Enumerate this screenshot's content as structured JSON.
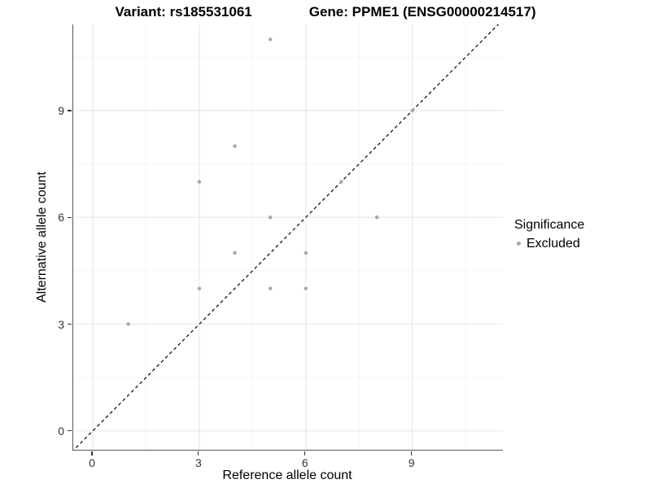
{
  "header": {
    "variant_title": "Variant: rs185531061",
    "gene_title": "Gene: PPME1 (ENSG00000214517)"
  },
  "chart_data": {
    "type": "scatter",
    "title": "Variant: rs185531061    Gene: PPME1 (ENSG00000214517)",
    "title_parts": {
      "left": "Variant: rs185531061",
      "right": "Gene: PPME1 (ENSG00000214517)"
    },
    "xlabel": "Reference allele count",
    "ylabel": "Alternative allele count",
    "xlim": [
      -0.55,
      11.55
    ],
    "ylim": [
      -0.53,
      11.42
    ],
    "x_ticks": [
      0,
      3,
      6,
      9
    ],
    "y_ticks": [
      0,
      3,
      6,
      9
    ],
    "x_minor_ticks": [
      1.5,
      4.5,
      7.5,
      10.5
    ],
    "y_minor_ticks": [
      1.5,
      4.5,
      7.5,
      10.5
    ],
    "grid": true,
    "legend_position": "right",
    "series": [
      {
        "name": "Excluded",
        "color": "#aaaaaa",
        "points": [
          [
            1,
            3
          ],
          [
            3,
            4
          ],
          [
            3,
            7
          ],
          [
            4,
            5
          ],
          [
            4,
            8
          ],
          [
            5,
            4
          ],
          [
            5,
            6
          ],
          [
            5,
            11
          ],
          [
            6,
            4
          ],
          [
            6,
            5
          ],
          [
            7,
            7
          ],
          [
            8,
            6
          ],
          [
            9,
            9
          ]
        ]
      }
    ],
    "reference_line": {
      "slope": 1,
      "intercept": 0,
      "style": "dashed",
      "color": "#000000"
    }
  },
  "legend": {
    "title": "Significance",
    "items": [
      {
        "label": "Excluded",
        "color": "#aaaaaa"
      }
    ]
  },
  "colors": {
    "background": "#ffffff",
    "grid_major": "#e8e8e8",
    "grid_minor": "#f4f4f4",
    "axis_line": "#565656",
    "tick_mark": "#333333",
    "tick_text": "#333333",
    "point": "#aaaaaa",
    "identity_line": "#000000"
  }
}
